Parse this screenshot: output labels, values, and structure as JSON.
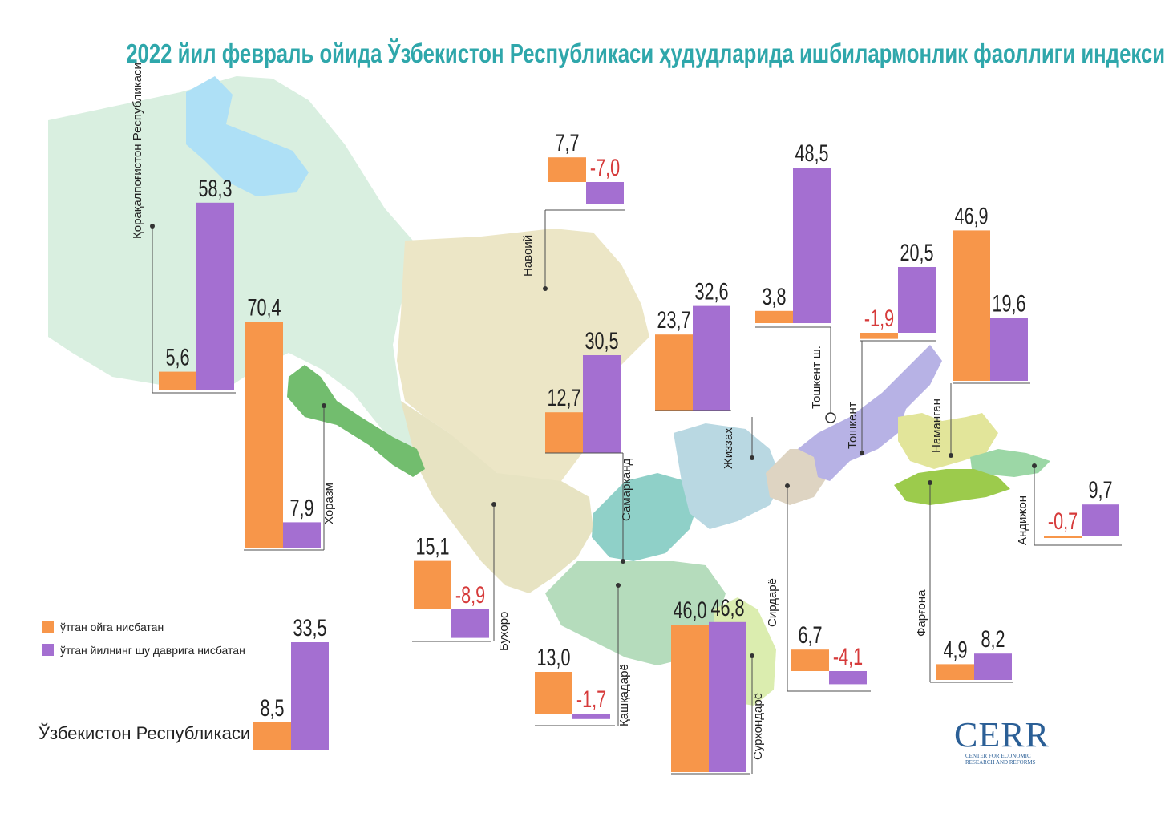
{
  "title": "2022 йил февраль ойида Ўзбекистон Республикаси ҳудудларида ишбилармонлик фаоллиги индекси",
  "colors": {
    "mom": "#f7964a",
    "yoy": "#a46fd1",
    "negative": "#d63a3a",
    "text": "#222222",
    "title": "#2fa7ab"
  },
  "legend": {
    "mom": "ўтган ойга нисбатан",
    "yoy": "ўтган йилнинг шу даврига нисбатан"
  },
  "national": {
    "label": "Ўзбекистон Республикаси",
    "mom_label": "8,5",
    "yoy_label": "33,5"
  },
  "logo": {
    "main": "CERR",
    "sub1": "Center for economic",
    "sub2": "research and reforms"
  },
  "chart_data": {
    "type": "bar",
    "series": [
      {
        "name": "ўтган ойга нисбатан",
        "key": "mom"
      },
      {
        "name": "ўтган йилнинг шу даврига нисбатан",
        "key": "yoy"
      }
    ],
    "regions": [
      {
        "name": "Қорақалпоғистон Республикаси",
        "mom": 5.6,
        "yoy": 58.3,
        "mom_label": "5,6",
        "yoy_label": "58,3"
      },
      {
        "name": "Хоразм",
        "mom": 70.4,
        "yoy": 7.9,
        "mom_label": "70,4",
        "yoy_label": "7,9"
      },
      {
        "name": "Навоий",
        "mom": 7.7,
        "yoy": -7.0,
        "mom_label": "7,7",
        "yoy_label": "-7,0"
      },
      {
        "name": "Самарқанд",
        "mom": 12.7,
        "yoy": 30.5,
        "mom_label": "12,7",
        "yoy_label": "30,5"
      },
      {
        "name": "Жиззах",
        "mom": 23.7,
        "yoy": 32.6,
        "mom_label": "23,7",
        "yoy_label": "32,6"
      },
      {
        "name": "Тошкент ш.",
        "mom": 3.8,
        "yoy": 48.5,
        "mom_label": "3,8",
        "yoy_label": "48,5"
      },
      {
        "name": "Тошкент",
        "mom": -1.9,
        "yoy": 20.5,
        "mom_label": "-1,9",
        "yoy_label": "20,5"
      },
      {
        "name": "Наманган",
        "mom": 46.9,
        "yoy": 19.6,
        "mom_label": "46,9",
        "yoy_label": "19,6"
      },
      {
        "name": "Андижон",
        "mom": -0.7,
        "yoy": 9.7,
        "mom_label": "-0,7",
        "yoy_label": "9,7"
      },
      {
        "name": "Бухоро",
        "mom": 15.1,
        "yoy": -8.9,
        "mom_label": "15,1",
        "yoy_label": "-8,9"
      },
      {
        "name": "Қашқадарё",
        "mom": 13.0,
        "yoy": -1.7,
        "mom_label": "13,0",
        "yoy_label": "-1,7"
      },
      {
        "name": "Сурхондарё",
        "mom": 46.0,
        "yoy": 46.8,
        "mom_label": "46,0",
        "yoy_label": "46,8"
      },
      {
        "name": "Сирдарё",
        "mom": 6.7,
        "yoy": -4.1,
        "mom_label": "6,7",
        "yoy_label": "-4,1"
      },
      {
        "name": "Фарғона",
        "mom": 4.9,
        "yoy": 8.2,
        "mom_label": "4,9",
        "yoy_label": "8,2"
      },
      {
        "name": "Ўзбекистон Республикаси",
        "mom": 8.5,
        "yoy": 33.5,
        "mom_label": "8,5",
        "yoy_label": "33,5"
      }
    ]
  }
}
